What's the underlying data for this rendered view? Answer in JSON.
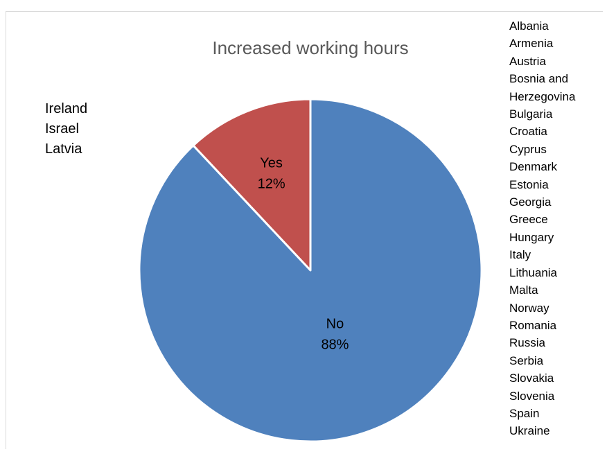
{
  "chart_data": {
    "type": "pie",
    "title": "Increased working hours",
    "slices": [
      {
        "label": "Yes",
        "value": 12,
        "value_label": "12%",
        "color": "#c0504d"
      },
      {
        "label": "No",
        "value": 88,
        "value_label": "88%",
        "color": "#4f81bd"
      }
    ],
    "slice_border_color": "#ffffff",
    "legend": "none",
    "annotations": {
      "yes_countries": [
        "Ireland",
        "Israel",
        "Latvia"
      ],
      "no_countries": [
        "Albania",
        "Armenia",
        "Austria",
        "Bosnia and",
        "Herzegovina",
        "Bulgaria",
        "Croatia",
        "Cyprus",
        "Denmark",
        "Estonia",
        "Georgia",
        "Greece",
        "Hungary",
        "Italy",
        "Lithuania",
        "Malta",
        "Norway",
        "Romania",
        "Russia",
        "Serbia",
        "Slovakia",
        "Slovenia",
        "Spain",
        "Ukraine"
      ]
    }
  }
}
